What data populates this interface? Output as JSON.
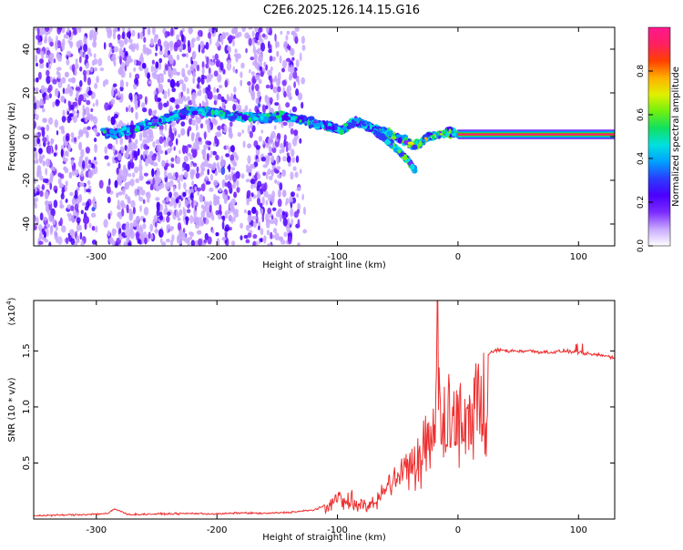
{
  "title": "C2E6.2025.126.14.15.G16",
  "chart_data": [
    {
      "type": "heatmap",
      "xlabel": "Height of straight line (km)",
      "ylabel": "Frequency (Hz)",
      "xlim": [
        -352,
        130
      ],
      "ylim": [
        -50,
        50
      ],
      "xticks": [
        -300,
        -200,
        -100,
        0,
        100
      ],
      "yticks": [
        -40,
        -20,
        0,
        20,
        40
      ],
      "colorbar": {
        "label": "Normalized spectral amplitude",
        "ticks": [
          "0.0",
          "0.2",
          "0.4",
          "0.6",
          "0.8"
        ],
        "range": [
          0,
          1
        ],
        "palette": [
          "#ffffff",
          "#c8a8ff",
          "#7b2cff",
          "#4b00ff",
          "#2a3cff",
          "#00a0ff",
          "#00e0e0",
          "#10e060",
          "#70f010",
          "#e0f000",
          "#ffb000",
          "#ff4000",
          "#ff2060",
          "#ff1890"
        ]
      },
      "features": {
        "steady_tone": {
          "x_range": [
            0,
            130
          ],
          "frequency_hz": 1,
          "amplitude": 1.0
        },
        "ridge": [
          [
            -295,
            2
          ],
          [
            -285,
            1
          ],
          [
            -220,
            12
          ],
          [
            -200,
            11
          ],
          [
            -180,
            9
          ],
          [
            -155,
            9
          ],
          [
            -140,
            9
          ],
          [
            -125,
            7
          ],
          [
            -110,
            5
          ],
          [
            -95,
            3
          ],
          [
            -85,
            7
          ],
          [
            -75,
            5
          ],
          [
            -65,
            3
          ],
          [
            -55,
            1
          ],
          [
            -45,
            -2
          ],
          [
            -35,
            -4
          ],
          [
            -25,
            0
          ],
          [
            -15,
            1
          ],
          [
            -5,
            2
          ],
          [
            0,
            1
          ]
        ],
        "ridge_branch": [
          [
            -80,
            6
          ],
          [
            -70,
            3
          ],
          [
            -60,
            -1
          ],
          [
            -50,
            -6
          ],
          [
            -40,
            -12
          ],
          [
            -35,
            -16
          ]
        ],
        "noise_band": {
          "x_range": [
            -352,
            -125
          ],
          "frequency_range": [
            -50,
            50
          ]
        }
      }
    },
    {
      "type": "line",
      "xlabel": "Height of straight line (km)",
      "ylabel": "SNR (10 * v/v)",
      "yscale_label": "(x10",
      "yscale_exp": "4",
      "xlim": [
        -352,
        130
      ],
      "ylim": [
        0,
        19500
      ],
      "xticks": [
        -300,
        -200,
        -100,
        0,
        100
      ],
      "yticks": [
        "0.5",
        "1.0",
        "1.5"
      ],
      "line_color": "#ee3030",
      "series": [
        {
          "x": [
            -352,
            -330,
            -310,
            -290,
            -285,
            -280,
            -275,
            -270,
            -250,
            -220,
            -200,
            -180,
            -160,
            -140,
            -130,
            -120,
            -110,
            -100,
            -95,
            -90,
            -85,
            -80,
            -75,
            -70,
            -65,
            -60,
            -55,
            -50,
            -45,
            -40,
            -35,
            -30,
            -25,
            -20,
            -17,
            -15,
            -10,
            -5,
            0,
            5,
            10,
            15,
            20,
            25,
            30,
            35,
            40,
            50,
            60,
            70,
            80,
            90,
            100,
            110,
            120,
            130
          ],
          "y": [
            300,
            350,
            400,
            500,
            900,
            700,
            450,
            400,
            450,
            500,
            450,
            550,
            500,
            600,
            700,
            800,
            1200,
            2200,
            1800,
            2500,
            1700,
            1600,
            1400,
            1800,
            2300,
            3000,
            3700,
            4500,
            5300,
            6000,
            6800,
            7700,
            8500,
            9500,
            19500,
            10000,
            10500,
            11000,
            11200,
            11400,
            12000,
            13000,
            14000,
            14700,
            15000,
            15100,
            15000,
            15000,
            15000,
            14900,
            14900,
            15000,
            14800,
            14700,
            14600,
            14400
          ]
        }
      ]
    }
  ]
}
